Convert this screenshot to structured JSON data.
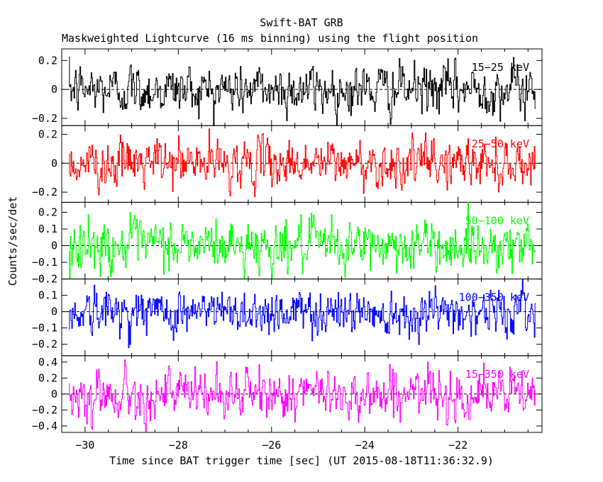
{
  "chart_data": {
    "type": "line",
    "title": "Swift-BAT GRB",
    "subtitle": "Maskweighted Lightcurve (16 ms binning) using the flight position",
    "xlabel": "Time since BAT trigger time [sec] (UT 2015-08-18T11:36:32.9)",
    "ylabel": "Counts/sec/det",
    "xlim": [
      -30.5,
      -20.2
    ],
    "x_ticks": [
      -30,
      -28,
      -26,
      -24,
      -22
    ],
    "x_tick_labels": [
      "−30",
      "−28",
      "−26",
      "−24",
      "−22"
    ],
    "grid": false,
    "zero_line": "dashed",
    "x_sampling": {
      "start": -30.35,
      "end": -20.35,
      "step": 0.016
    },
    "panels": [
      {
        "band": "15−25 keV",
        "color": "#000000",
        "ylim": [
          -0.25,
          0.28
        ],
        "y_ticks": [
          -0.2,
          0,
          0.2
        ],
        "y_tick_labels": [
          "−0.2",
          "0",
          "0.2"
        ],
        "noise_sigma": 0.08
      },
      {
        "band": "25−50 keV",
        "color": "#ff0000",
        "ylim": [
          -0.27,
          0.26
        ],
        "y_ticks": [
          -0.2,
          0,
          0.2
        ],
        "y_tick_labels": [
          "−0.2",
          "0",
          "0.2"
        ],
        "noise_sigma": 0.075
      },
      {
        "band": "50−100 keV",
        "color": "#00ff00",
        "ylim": [
          -0.2,
          0.26
        ],
        "y_ticks": [
          -0.2,
          -0.1,
          0,
          0.1,
          0.2
        ],
        "y_tick_labels": [
          "−0.2",
          "−0.1",
          "0",
          "0.1",
          "0.2"
        ],
        "noise_sigma": 0.07
      },
      {
        "band": "100−350 keV",
        "color": "#0000ff",
        "ylim": [
          -0.27,
          0.2
        ],
        "y_ticks": [
          -0.2,
          -0.1,
          0,
          0.1
        ],
        "y_tick_labels": [
          "−0.2",
          "−0.1",
          "0",
          "0.1"
        ],
        "noise_sigma": 0.065
      },
      {
        "band": "15−350 keV",
        "color": "#ff00ff",
        "ylim": [
          -0.48,
          0.48
        ],
        "y_ticks": [
          -0.4,
          -0.2,
          0,
          0.2,
          0.4
        ],
        "y_tick_labels": [
          "−0.4",
          "−0.2",
          "0",
          "0.2",
          "0.4"
        ],
        "noise_sigma": 0.14
      }
    ]
  }
}
